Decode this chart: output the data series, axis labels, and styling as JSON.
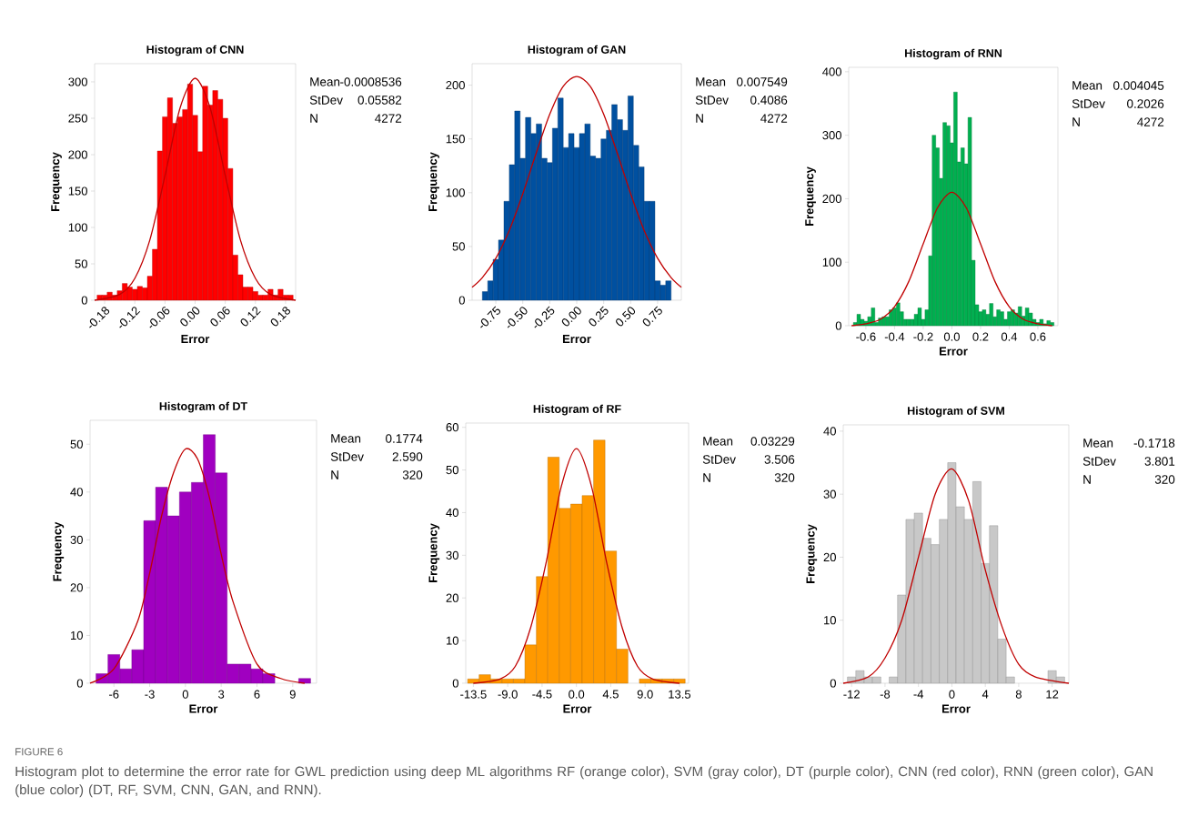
{
  "chart_data": [
    {
      "type": "histogram",
      "title": "Histogram of CNN",
      "xlabel": "Error",
      "ylabel": "Frequency",
      "xlim": [
        -0.2,
        0.2
      ],
      "ylim": [
        0,
        325
      ],
      "xticks": [
        {
          "value": -0.18,
          "label": "-0.18"
        },
        {
          "value": -0.12,
          "label": "-0.12"
        },
        {
          "value": -0.06,
          "label": "-0.06"
        },
        {
          "value": 0,
          "label": "0.00"
        },
        {
          "value": 0.06,
          "label": "0.06"
        },
        {
          "value": 0.12,
          "label": "0.12"
        },
        {
          "value": 0.18,
          "label": "0.18"
        }
      ],
      "yticks": [
        0,
        50,
        100,
        150,
        200,
        250,
        300
      ],
      "series": [
        {
          "color": "#ff0000",
          "bins": [
            -0.195,
            -0.185,
            -0.175,
            -0.165,
            -0.155,
            -0.145,
            -0.135,
            -0.125,
            -0.115,
            -0.105,
            -0.095,
            -0.085,
            -0.075,
            -0.065,
            -0.055,
            -0.045,
            -0.035,
            -0.025,
            -0.015,
            -0.005,
            0.005,
            0.015,
            0.025,
            0.035,
            0.045,
            0.055,
            0.065,
            0.075,
            0.085,
            0.095,
            0.105,
            0.115,
            0.125,
            0.135,
            0.145,
            0.155,
            0.165,
            0.175,
            0.185,
            0.195
          ],
          "values": [
            7,
            7,
            11,
            7,
            13,
            23,
            18,
            15,
            19,
            17,
            33,
            70,
            205,
            252,
            278,
            243,
            252,
            262,
            297,
            254,
            204,
            294,
            268,
            288,
            276,
            250,
            181,
            62,
            35,
            18,
            18,
            12,
            7,
            7,
            15,
            7,
            15,
            7,
            7
          ]
        },
        {
          "type": "line",
          "color": "#c00000",
          "x": [
            -0.2,
            -0.15,
            -0.12,
            -0.09,
            -0.06,
            -0.03,
            0,
            0.03,
            0.06,
            0.09,
            0.12,
            0.15,
            0.2
          ],
          "values": [
            0,
            8,
            30,
            83,
            171,
            264,
            305,
            264,
            171,
            83,
            30,
            8,
            0
          ]
        }
      ],
      "annotations": [
        "Mean",
        "-0.0008536",
        "StDev",
        "0.05582",
        "N",
        "4272",
        "FIGURE 6",
        "Histogram plot to determine the error rate for GWL prediction using deep ML algorithms RF (orange color), SVM (gray color), DT (purple color), CNN (red color), RNN (green color), GAN (blue color) (DT, RF, SVM, CNN, GAN, and RNN)."
      ]
    },
    {
      "type": "histogram",
      "title": "Histogram of GAN",
      "xlabel": "Error",
      "ylabel": "Frequency",
      "xlim": [
        -0.97,
        0.97
      ],
      "ylim": [
        0,
        220
      ],
      "xticks": [
        {
          "value": -0.75,
          "label": "-0.75"
        },
        {
          "value": -0.5,
          "label": "-0.50"
        },
        {
          "value": -0.25,
          "label": "-0.25"
        },
        {
          "value": 0,
          "label": "0.00"
        },
        {
          "value": 0.25,
          "label": "0.25"
        },
        {
          "value": 0.5,
          "label": "0.50"
        },
        {
          "value": 0.75,
          "label": "0.75"
        }
      ],
      "yticks": [
        0,
        50,
        100,
        150,
        200
      ],
      "series": [
        {
          "color": "#0050a0",
          "bins": [
            -0.875,
            -0.825,
            -0.775,
            -0.725,
            -0.675,
            -0.625,
            -0.575,
            -0.525,
            -0.475,
            -0.425,
            -0.375,
            -0.325,
            -0.275,
            -0.225,
            -0.175,
            -0.125,
            -0.075,
            -0.025,
            0.025,
            0.075,
            0.125,
            0.175,
            0.225,
            0.275,
            0.325,
            0.375,
            0.425,
            0.475,
            0.525,
            0.575,
            0.625,
            0.675,
            0.725,
            0.775,
            0.825,
            0.875
          ],
          "values": [
            8,
            18,
            38,
            56,
            92,
            126,
            176,
            132,
            170,
            155,
            164,
            132,
            128,
            160,
            188,
            142,
            155,
            142,
            155,
            164,
            134,
            132,
            150,
            158,
            182,
            168,
            158,
            190,
            144,
            124,
            92,
            92,
            18,
            14,
            18
          ]
        },
        {
          "type": "line",
          "color": "#c00000",
          "x": [
            -0.97,
            -0.875,
            -0.75,
            -0.625,
            -0.5,
            -0.375,
            -0.25,
            -0.125,
            0,
            0.125,
            0.25,
            0.375,
            0.5,
            0.625,
            0.75,
            0.875,
            0.97
          ],
          "values": [
            12,
            21,
            39,
            65,
            99,
            137,
            173,
            199,
            208,
            199,
            173,
            137,
            99,
            65,
            39,
            21,
            12
          ]
        }
      ],
      "annotations": [
        "Mean",
        "0.007549",
        "StDev",
        "0.4086",
        "N",
        "4272"
      ]
    },
    {
      "type": "histogram",
      "title": "Histogram of RNN",
      "xlabel": "Error",
      "ylabel": "Frequency",
      "xlim": [
        -0.72,
        0.74
      ],
      "ylim": [
        0,
        407
      ],
      "xticks": [
        -0.6,
        -0.4,
        -0.2,
        {
          "value": 0,
          "label": "0.0"
        },
        0.2,
        0.4,
        0.6
      ],
      "yticks": [
        0,
        100,
        200,
        300,
        400
      ],
      "series": [
        {
          "color": "#00b050",
          "bins": [
            -0.6875,
            -0.6625,
            -0.6375,
            -0.6125,
            -0.5875,
            -0.5625,
            -0.5375,
            -0.5125,
            -0.4875,
            -0.4625,
            -0.4375,
            -0.4125,
            -0.3875,
            -0.3625,
            -0.3375,
            -0.3125,
            -0.2875,
            -0.2625,
            -0.2375,
            -0.2125,
            -0.1875,
            -0.1625,
            -0.1375,
            -0.1125,
            -0.0875,
            -0.0625,
            -0.0375,
            -0.0125,
            0.0125,
            0.0375,
            0.0625,
            0.0875,
            0.1125,
            0.1375,
            0.1625,
            0.1875,
            0.2125,
            0.2375,
            0.2625,
            0.2875,
            0.3125,
            0.3375,
            0.3625,
            0.3875,
            0.4125,
            0.4375,
            0.4625,
            0.4875,
            0.5125,
            0.5375,
            0.5625,
            0.5875,
            0.6125,
            0.6375,
            0.6625,
            0.6875,
            0.7125
          ],
          "values": [
            5,
            18,
            10,
            7,
            14,
            28,
            5,
            12,
            14,
            14,
            25,
            28,
            36,
            22,
            10,
            10,
            10,
            18,
            28,
            10,
            25,
            110,
            300,
            280,
            232,
            320,
            315,
            288,
            368,
            258,
            280,
            255,
            328,
            103,
            33,
            22,
            25,
            18,
            35,
            14,
            25,
            22,
            10,
            22,
            25,
            20,
            30,
            15,
            28,
            20,
            10,
            5,
            10,
            3,
            8,
            5
          ]
        },
        {
          "type": "line",
          "color": "#c00000",
          "x": [
            -0.7,
            -0.6,
            -0.5,
            -0.4,
            -0.3,
            -0.2,
            -0.1,
            0,
            0.1,
            0.2,
            0.3,
            0.4,
            0.5,
            0.6,
            0.7
          ],
          "values": [
            0,
            3,
            10,
            30,
            70,
            129,
            186,
            210,
            186,
            129,
            70,
            30,
            10,
            3,
            0
          ]
        }
      ],
      "annotations": [
        "Mean",
        "0.004045",
        "StDev",
        "0.2026",
        "N",
        "4272"
      ]
    },
    {
      "type": "histogram",
      "title": "Histogram of DT",
      "xlabel": "Error",
      "ylabel": "Frequency",
      "xlim": [
        -8,
        11
      ],
      "ylim": [
        0,
        55
      ],
      "xticks": [
        -6,
        -3,
        0,
        3,
        6,
        9
      ],
      "yticks": [
        0,
        10,
        20,
        30,
        40,
        50
      ],
      "series": [
        {
          "color": "#a000c0",
          "bins": [
            -7.5,
            -6.5,
            -5.5,
            -4.5,
            -3.5,
            -2.5,
            -1.5,
            -0.5,
            0.5,
            1.5,
            2.5,
            3.5,
            4.5,
            5.5,
            6.5,
            7.5,
            8.5,
            9.5,
            10.5
          ],
          "values": [
            2,
            6,
            3,
            7,
            34,
            41,
            35,
            40,
            42,
            52,
            44,
            4,
            4,
            3,
            2,
            0,
            0,
            1
          ]
        },
        {
          "type": "line",
          "color": "#c00000",
          "x": [
            -8,
            -6,
            -4,
            -3,
            -2,
            -1,
            0,
            1,
            2,
            3,
            4,
            6,
            8,
            10
          ],
          "values": [
            0,
            3,
            13,
            23,
            35,
            44,
            49,
            47,
            39,
            27,
            17,
            4,
            1,
            0
          ]
        }
      ],
      "annotations": [
        "Mean",
        "0.1774",
        "StDev",
        "2.590",
        "N",
        "320"
      ]
    },
    {
      "type": "histogram",
      "title": "Histogram of RF",
      "xlabel": "Error",
      "ylabel": "Frequency",
      "xlim": [
        -14.5,
        14.7
      ],
      "ylim": [
        0,
        61
      ],
      "xticks": [
        -13.5,
        {
          "value": -9,
          "label": "-9.0"
        },
        -4.5,
        {
          "value": 0,
          "label": "0.0"
        },
        4.5,
        {
          "value": 9,
          "label": "9.0"
        },
        13.5
      ],
      "yticks": [
        0,
        10,
        20,
        30,
        40,
        50,
        60
      ],
      "series": [
        {
          "color": "#ff9900",
          "bins": [
            -14.25,
            -12.75,
            -11.25,
            -9.75,
            -8.25,
            -6.75,
            -5.25,
            -3.75,
            -2.25,
            -0.75,
            0.75,
            2.25,
            3.75,
            5.25,
            6.75,
            8.25,
            9.75,
            11.25,
            12.75,
            14.25
          ],
          "values": [
            1,
            2,
            1,
            1,
            1,
            9,
            25,
            53,
            41,
            42,
            44,
            57,
            31,
            8,
            0,
            1,
            1,
            1,
            1
          ]
        },
        {
          "type": "line",
          "color": "#c00000",
          "x": [
            -13.5,
            -10,
            -8,
            -6,
            -4,
            -2,
            0,
            2,
            4,
            6,
            8,
            10,
            13.5
          ],
          "values": [
            0,
            1,
            4,
            13,
            28,
            46,
            55,
            46,
            28,
            13,
            4,
            1,
            0
          ]
        }
      ],
      "annotations": [
        "Mean",
        "0.03229",
        "StDev",
        "3.506",
        "N",
        "320"
      ]
    },
    {
      "type": "histogram",
      "title": "Histogram of SVM",
      "xlabel": "Error",
      "ylabel": "Frequency",
      "xlim": [
        -13,
        14
      ],
      "ylim": [
        0,
        41
      ],
      "xticks": [
        -12,
        -8,
        -4,
        0,
        4,
        8,
        12
      ],
      "yticks": [
        0,
        10,
        20,
        30,
        40
      ],
      "series": [
        {
          "color": "#c8c8c8",
          "bins": [
            -12.5,
            -11.5,
            -10.5,
            -9.5,
            -8.5,
            -7.5,
            -6.5,
            -5.5,
            -4.5,
            -3.5,
            -2.5,
            -1.5,
            -0.5,
            0.5,
            1.5,
            2.5,
            3.5,
            4.5,
            5.5,
            6.5,
            7.5,
            8.5,
            9.5,
            10.5,
            11.5,
            12.5,
            13.5
          ],
          "values": [
            1,
            2,
            1,
            1,
            0,
            1,
            14,
            26,
            27,
            23,
            22,
            26,
            35,
            28,
            26,
            32,
            19,
            25,
            7,
            1,
            0,
            0,
            0,
            0,
            2,
            1
          ]
        },
        {
          "type": "line",
          "color": "#c00000",
          "x": [
            -13,
            -10,
            -8,
            -6,
            -4,
            -2,
            0,
            2,
            4,
            6,
            8,
            10,
            14
          ],
          "values": [
            0,
            1,
            4,
            10,
            20,
            30,
            34,
            29,
            18,
            9,
            3,
            1,
            0
          ]
        }
      ],
      "annotations": [
        "Mean",
        "-0.1718",
        "StDev",
        "3.801",
        "N",
        "320"
      ]
    }
  ]
}
